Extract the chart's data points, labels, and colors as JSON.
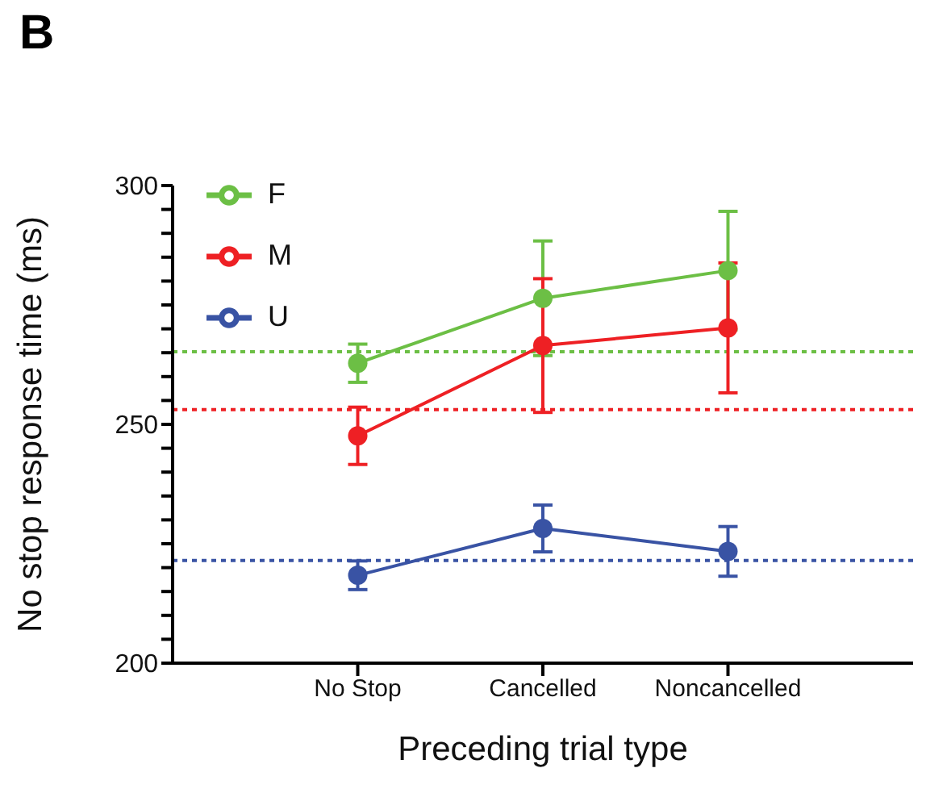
{
  "chart_data": {
    "type": "line",
    "title": "B",
    "xlabel": "Preceding trial type",
    "ylabel": "No stop response time (ms)",
    "categories": [
      "No Stop",
      "Cancelled",
      "Noncancelled"
    ],
    "series": [
      {
        "name": "F",
        "color": "#6cbf45",
        "values": [
          262.8,
          276.4,
          282.2
        ],
        "errors": [
          4,
          12,
          12.4
        ]
      },
      {
        "name": "M",
        "color": "#ee2024",
        "values": [
          247.6,
          266.5,
          270.2
        ],
        "errors": [
          6,
          14,
          13.6
        ]
      },
      {
        "name": "U",
        "color": "#3953a4",
        "values": [
          218.4,
          228.2,
          223.4
        ],
        "errors": [
          3,
          4.9,
          5.2
        ]
      }
    ],
    "ylim": [
      200,
      300
    ],
    "yticks": [
      200,
      {
        "value": 205,
        "label": null
      },
      {
        "value": 210,
        "label": null
      },
      {
        "value": 215,
        "label": null
      },
      {
        "value": 220,
        "label": null
      },
      {
        "value": 225,
        "label": null
      },
      {
        "value": 230,
        "label": null
      },
      {
        "value": 235,
        "label": null
      },
      {
        "value": 240,
        "label": null
      },
      {
        "value": 245,
        "label": null
      },
      250,
      {
        "value": 255,
        "label": null
      },
      {
        "value": 260,
        "label": null
      },
      {
        "value": 265,
        "label": null
      },
      {
        "value": 270,
        "label": null
      },
      {
        "value": 275,
        "label": null
      },
      {
        "value": 280,
        "label": null
      },
      {
        "value": 285,
        "label": null
      },
      {
        "value": 290,
        "label": null
      },
      {
        "value": 295,
        "label": null
      },
      300
    ],
    "ref_lines": [
      {
        "axis": "y",
        "value": 265.2,
        "color": "#6cbf45",
        "line_style": "dotted"
      },
      {
        "axis": "y",
        "value": 253.1,
        "color": "#ee2024",
        "line_style": "dotted"
      },
      {
        "axis": "y",
        "value": 221.5,
        "color": "#3953a4",
        "line_style": "dotted"
      }
    ],
    "legend": "top left",
    "marker": "circle",
    "line_style": "solid",
    "grid": false
  }
}
